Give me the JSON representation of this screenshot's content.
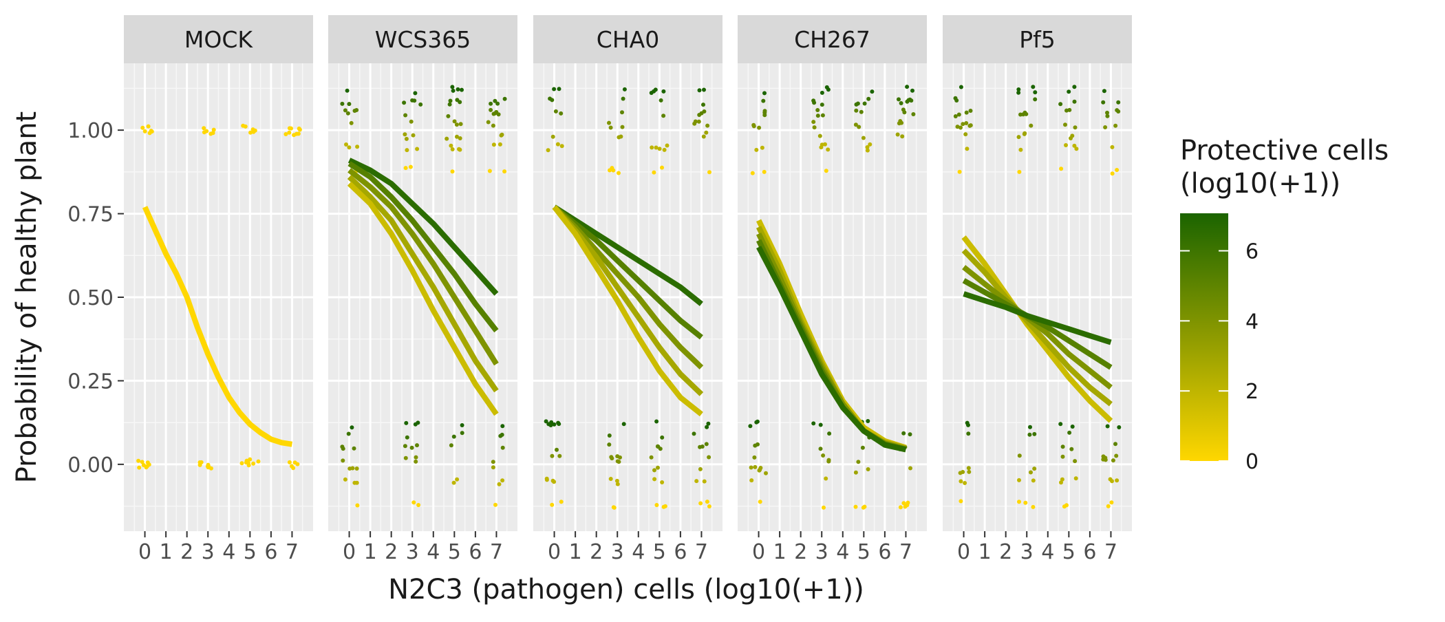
{
  "chart_data": {
    "type": "line",
    "ylabel": "Probability of healthy plant",
    "xlabel": "N2C3 (pathogen) cells (log10(+1))",
    "xlim": [
      -1,
      8
    ],
    "ylim": [
      -0.2,
      1.2
    ],
    "x_ticks": [
      "0",
      "1",
      "2",
      "3",
      "4",
      "5",
      "6",
      "7"
    ],
    "y_ticks": [
      "0.00",
      "0.25",
      "0.50",
      "0.75",
      "1.00"
    ],
    "grid": true,
    "legend": {
      "title_line1": "Protective cells",
      "title_line2": "(log10(+1))",
      "position": "right",
      "ticks": [
        "0",
        "2",
        "4",
        "6"
      ],
      "color_low": "#FFD700",
      "color_high": "#1B6400"
    },
    "panels": [
      {
        "name": "MOCK",
        "point_xs": [
          0,
          3,
          5,
          7
        ],
        "curves": [
          {
            "protective": 0,
            "x": [
              0,
              0.5,
              1,
              1.5,
              2,
              2.5,
              3,
              3.5,
              4,
              4.5,
              5,
              5.5,
              6,
              6.5,
              7
            ],
            "y": [
              0.77,
              0.7,
              0.63,
              0.57,
              0.5,
              0.41,
              0.33,
              0.26,
              0.2,
              0.155,
              0.12,
              0.095,
              0.075,
              0.065,
              0.06
            ]
          }
        ]
      },
      {
        "name": "WCS365",
        "point_xs": [
          0,
          3,
          5,
          7
        ],
        "curves": [
          {
            "protective": 6.5,
            "x": [
              0,
              1,
              2,
              3,
              4,
              5,
              6,
              7
            ],
            "y": [
              0.91,
              0.88,
              0.84,
              0.78,
              0.72,
              0.65,
              0.58,
              0.51
            ]
          },
          {
            "protective": 5.2,
            "x": [
              0,
              1,
              2,
              3,
              4,
              5,
              6,
              7
            ],
            "y": [
              0.9,
              0.86,
              0.8,
              0.73,
              0.65,
              0.57,
              0.48,
              0.4
            ]
          },
          {
            "protective": 4.0,
            "x": [
              0,
              1,
              2,
              3,
              4,
              5,
              6,
              7
            ],
            "y": [
              0.88,
              0.83,
              0.77,
              0.69,
              0.6,
              0.5,
              0.4,
              0.3
            ]
          },
          {
            "protective": 2.8,
            "x": [
              0,
              1,
              2,
              3,
              4,
              5,
              6,
              7
            ],
            "y": [
              0.86,
              0.8,
              0.73,
              0.63,
              0.53,
              0.42,
              0.31,
              0.22
            ]
          },
          {
            "protective": 1.6,
            "x": [
              0,
              1,
              2,
              3,
              4,
              5,
              6,
              7
            ],
            "y": [
              0.84,
              0.78,
              0.69,
              0.58,
              0.46,
              0.35,
              0.24,
              0.15
            ]
          }
        ]
      },
      {
        "name": "CHA0",
        "point_xs": [
          0,
          3,
          5,
          7
        ],
        "curves": [
          {
            "protective": 6.5,
            "x": [
              0,
              1,
              2,
              3,
              4,
              5,
              6,
              7
            ],
            "y": [
              0.77,
              0.73,
              0.69,
              0.65,
              0.61,
              0.57,
              0.53,
              0.48
            ]
          },
          {
            "protective": 5.2,
            "x": [
              0,
              1,
              2,
              3,
              4,
              5,
              6,
              7
            ],
            "y": [
              0.77,
              0.72,
              0.67,
              0.61,
              0.55,
              0.49,
              0.43,
              0.38
            ]
          },
          {
            "protective": 4.0,
            "x": [
              0,
              1,
              2,
              3,
              4,
              5,
              6,
              7
            ],
            "y": [
              0.77,
              0.71,
              0.64,
              0.57,
              0.5,
              0.42,
              0.35,
              0.29
            ]
          },
          {
            "protective": 2.8,
            "x": [
              0,
              1,
              2,
              3,
              4,
              5,
              6,
              7
            ],
            "y": [
              0.77,
              0.7,
              0.62,
              0.53,
              0.44,
              0.35,
              0.27,
              0.21
            ]
          },
          {
            "protective": 1.6,
            "x": [
              0,
              1,
              2,
              3,
              4,
              5,
              6,
              7
            ],
            "y": [
              0.77,
              0.69,
              0.59,
              0.49,
              0.38,
              0.28,
              0.2,
              0.15
            ]
          }
        ]
      },
      {
        "name": "CH267",
        "point_xs": [
          0,
          3,
          5,
          7
        ],
        "curves": [
          {
            "protective": 1.6,
            "x": [
              0,
              1,
              2,
              3,
              4,
              5,
              6,
              7
            ],
            "y": [
              0.73,
              0.6,
              0.45,
              0.31,
              0.19,
              0.11,
              0.07,
              0.05
            ]
          },
          {
            "protective": 2.8,
            "x": [
              0,
              1,
              2,
              3,
              4,
              5,
              6,
              7
            ],
            "y": [
              0.71,
              0.58,
              0.43,
              0.3,
              0.18,
              0.1,
              0.065,
              0.048
            ]
          },
          {
            "protective": 4.0,
            "x": [
              0,
              1,
              2,
              3,
              4,
              5,
              6,
              7
            ],
            "y": [
              0.69,
              0.56,
              0.42,
              0.29,
              0.18,
              0.1,
              0.062,
              0.046
            ]
          },
          {
            "protective": 5.2,
            "x": [
              0,
              1,
              2,
              3,
              4,
              5,
              6,
              7
            ],
            "y": [
              0.67,
              0.54,
              0.41,
              0.28,
              0.17,
              0.1,
              0.06,
              0.045
            ]
          },
          {
            "protective": 6.5,
            "x": [
              0,
              1,
              2,
              3,
              4,
              5,
              6,
              7
            ],
            "y": [
              0.65,
              0.53,
              0.4,
              0.27,
              0.17,
              0.1,
              0.058,
              0.044
            ]
          }
        ]
      },
      {
        "name": "Pf5",
        "point_xs": [
          0,
          3,
          5,
          7
        ],
        "curves": [
          {
            "protective": 1.6,
            "x": [
              0,
              1,
              2,
              3,
              4,
              5,
              6,
              7
            ],
            "y": [
              0.68,
              0.6,
              0.51,
              0.42,
              0.34,
              0.26,
              0.19,
              0.13
            ]
          },
          {
            "protective": 2.8,
            "x": [
              0,
              1,
              2,
              3,
              4,
              5,
              6,
              7
            ],
            "y": [
              0.64,
              0.575,
              0.5,
              0.43,
              0.36,
              0.29,
              0.23,
              0.18
            ]
          },
          {
            "protective": 4.0,
            "x": [
              0,
              1,
              2,
              3,
              4,
              5,
              6,
              7
            ],
            "y": [
              0.59,
              0.54,
              0.49,
              0.44,
              0.39,
              0.33,
              0.28,
              0.23
            ]
          },
          {
            "protective": 5.2,
            "x": [
              0,
              1,
              2,
              3,
              4,
              5,
              6,
              7
            ],
            "y": [
              0.55,
              0.515,
              0.48,
              0.445,
              0.41,
              0.37,
              0.33,
              0.29
            ]
          },
          {
            "protective": 6.5,
            "x": [
              0,
              1,
              2,
              3,
              4,
              5,
              6,
              7
            ],
            "y": [
              0.51,
              0.49,
              0.47,
              0.445,
              0.425,
              0.405,
              0.385,
              0.365
            ]
          }
        ]
      }
    ]
  }
}
